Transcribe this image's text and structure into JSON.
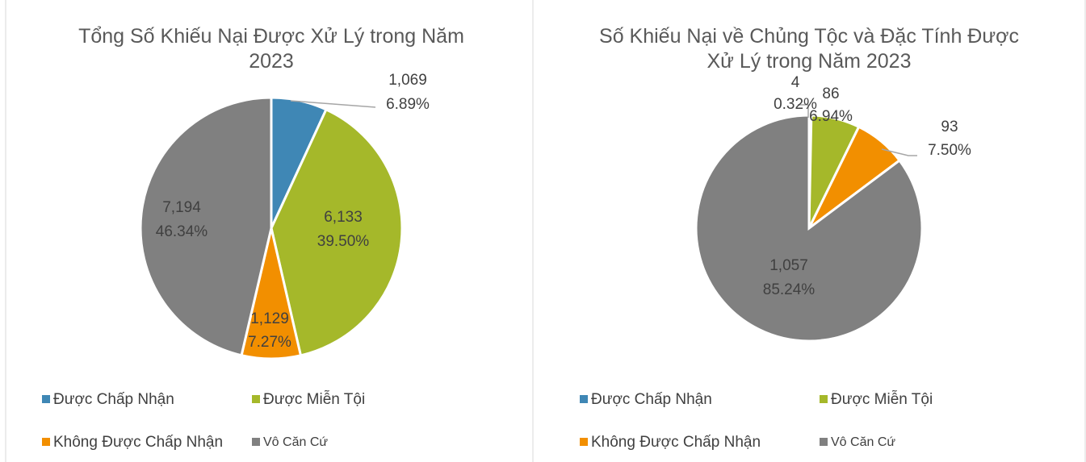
{
  "chart_data": [
    {
      "type": "pie",
      "title": "Tổng Số Khiếu Nại Được Xử Lý trong Năm 2023",
      "categories": [
        "Được Chấp Nhận",
        "Được Miễn Tội",
        "Không Được Chấp Nhận",
        "Vô Căn Cứ"
      ],
      "values": [
        1069,
        6133,
        1129,
        7194
      ],
      "value_labels": [
        "1,069",
        "6,133",
        "1,129",
        "7,194"
      ],
      "percentages": [
        6.89,
        39.5,
        7.27,
        46.34
      ],
      "percentage_labels": [
        "6.89%",
        "39.50%",
        "7.27%",
        "46.34%"
      ],
      "colors": [
        "#3f87b5",
        "#a5b82a",
        "#f28f00",
        "#808080"
      ],
      "legend": "bottom"
    },
    {
      "type": "pie",
      "title": "Số Khiếu Nại về Chủng Tộc và Đặc Tính Được Xử Lý trong Năm 2023",
      "categories": [
        "Được Chấp Nhận",
        "Được Miễn Tội",
        "Không Được Chấp Nhận",
        "Vô Căn Cứ"
      ],
      "values": [
        4,
        86,
        93,
        1057
      ],
      "value_labels": [
        "4",
        "86",
        "93",
        "1,057"
      ],
      "percentages": [
        0.32,
        6.94,
        7.5,
        85.24
      ],
      "percentage_labels": [
        "0.32%",
        "6.94%",
        "7.50%",
        "85.24%"
      ],
      "colors": [
        "#3f87b5",
        "#a5b82a",
        "#f28f00",
        "#808080"
      ],
      "legend": "bottom"
    }
  ]
}
